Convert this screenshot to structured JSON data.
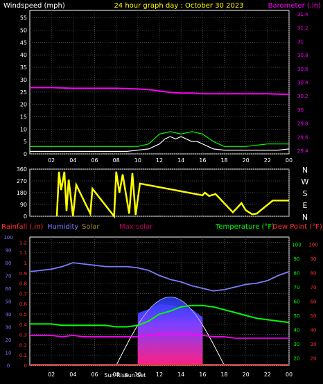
{
  "title": "24 hour graph day : October 30 2023",
  "colors": {
    "background": "#000000",
    "grid": "#5a5a5a",
    "axis_text": "#ffffff",
    "title": "#ffff00",
    "wind": "#ffffff",
    "gust": "#00ff00",
    "barometer": "#ff00ff",
    "wind_dir": "#ffff00",
    "rain": "#ff3030",
    "humidity": "#7b7bff",
    "solar": "#a08a30",
    "max_solar": "#c00060",
    "temperature": "#00ff00",
    "dew_point": "#ff3030",
    "dewpoint_line": "#ff00ff"
  },
  "chart_data": [
    {
      "type": "line",
      "name": "wind-baro",
      "left_label": "Windspeed (mph)",
      "right_label": "Barometer (.in)",
      "x_ticks": [
        "02",
        "04",
        "06",
        "08",
        "10",
        "12",
        "14",
        "16",
        "18",
        "20",
        "22",
        "00"
      ],
      "left_ticks": [
        "0",
        "5",
        "10",
        "15",
        "20",
        "25",
        "30",
        "35",
        "40",
        "45",
        "50",
        "55"
      ],
      "right_ticks": [
        "29.4",
        "29.6",
        "29.8",
        "30",
        "30.2",
        "30.4",
        "30.6",
        "30.8",
        "31",
        "31.2",
        "31.4"
      ],
      "ylim_left": [
        0,
        58
      ],
      "ylim_right": [
        29.35,
        31.45
      ],
      "series": [
        {
          "name": "Windspeed",
          "axis": "left",
          "x": [
            0,
            1,
            2,
            3,
            4,
            5,
            6,
            7,
            8,
            9,
            10,
            11,
            12,
            12.5,
            13,
            13.5,
            14,
            14.5,
            15,
            15.5,
            16,
            16.5,
            17,
            18,
            19,
            20,
            21,
            22,
            23,
            24
          ],
          "values": [
            1,
            1,
            1,
            1,
            1,
            1,
            1,
            1,
            1,
            1,
            1.5,
            2,
            4,
            6,
            7,
            6,
            7,
            6,
            5,
            5,
            4,
            3,
            2,
            1.5,
            1.5,
            1.5,
            1.5,
            1.5,
            1.5,
            2
          ]
        },
        {
          "name": "Gust",
          "axis": "left",
          "x": [
            0,
            2,
            4,
            6,
            8,
            10,
            11,
            12,
            13,
            14,
            15,
            16,
            17,
            18,
            20,
            22,
            24
          ],
          "values": [
            3,
            3,
            3,
            3,
            3,
            3,
            4,
            8,
            9,
            8,
            9,
            8,
            5,
            3,
            3,
            4,
            4
          ]
        },
        {
          "name": "Barometer",
          "axis": "right",
          "x": [
            0,
            2,
            4,
            6,
            8,
            10,
            11,
            12,
            13,
            14,
            15,
            16,
            18,
            20,
            22,
            24
          ],
          "values": [
            30.32,
            30.32,
            30.31,
            30.31,
            30.31,
            30.3,
            30.29,
            30.27,
            30.25,
            30.24,
            30.24,
            30.23,
            30.23,
            30.23,
            30.23,
            30.22
          ]
        }
      ]
    },
    {
      "type": "line",
      "name": "wind-direction",
      "left_ticks": [
        "0",
        "90",
        "180",
        "270",
        "360"
      ],
      "compass": [
        "N",
        "W",
        "S",
        "E",
        "N"
      ],
      "x_ticks": [
        "02",
        "04",
        "06",
        "08",
        "10",
        "12",
        "14",
        "16",
        "18",
        "20",
        "22",
        "00"
      ],
      "ylim": [
        0,
        360
      ],
      "series": [
        {
          "name": "Wind direction",
          "x": [
            2.5,
            2.7,
            2.9,
            3.2,
            3.4,
            3.6,
            4.0,
            4.3,
            5.6,
            5.8,
            7.8,
            8.0,
            8.3,
            8.6,
            9.2,
            9.5,
            9.8,
            10.2,
            16.0,
            16.2,
            16.6,
            17.2,
            18.8,
            19.6,
            20.0,
            20.6,
            21.0,
            22.5,
            24.0
          ],
          "values": [
            0,
            340,
            200,
            340,
            40,
            280,
            0,
            240,
            20,
            210,
            0,
            340,
            180,
            320,
            20,
            330,
            10,
            250,
            160,
            180,
            155,
            170,
            30,
            100,
            45,
            15,
            20,
            120,
            120
          ]
        }
      ]
    },
    {
      "type": "line",
      "name": "temp-humidity",
      "labels": {
        "rainfall": "Rainfall (.in)",
        "humidity": "Humidity",
        "solar": "Solar",
        "max_solar": "Max solar",
        "temperature": "Temperature (°F)",
        "dew_point": "Dew Point (°F)",
        "sunrise": "Sun Rise",
        "sunset": "Sun Set"
      },
      "x_ticks": [
        "02",
        "04",
        "06",
        "08",
        "10",
        "12",
        "14",
        "16",
        "18",
        "20",
        "22",
        "00"
      ],
      "humidity_ticks": [
        "0",
        "10",
        "20",
        "30",
        "40",
        "50",
        "60",
        "70",
        "80",
        "90",
        "100"
      ],
      "rain_ticks": [
        "0",
        "0.1",
        "0.2",
        "0.3",
        "0.4",
        "0.5",
        "0.6",
        "0.7",
        "0.8",
        "0.9",
        "1",
        "1.1",
        "1.2"
      ],
      "temp_ticks": [
        "20",
        "30",
        "40",
        "50",
        "60",
        "70",
        "80",
        "90",
        "100"
      ],
      "dew_ticks": [
        "20",
        "30",
        "40",
        "50",
        "60",
        "70",
        "80",
        "90",
        "100"
      ],
      "sunrise_hour": 8.0,
      "sunset_hour": 18.0,
      "series": [
        {
          "name": "Humidity",
          "axis": "humidity",
          "x": [
            0,
            1,
            2,
            3,
            4,
            5,
            6,
            7,
            8,
            9,
            10,
            11,
            12,
            13,
            14,
            15,
            16,
            17,
            18,
            19,
            20,
            21,
            22,
            23,
            24
          ],
          "values": [
            73,
            74,
            75,
            77,
            80,
            79,
            78,
            77,
            77,
            77,
            76,
            74,
            70,
            67,
            65,
            62,
            60,
            58,
            59,
            61,
            63,
            64,
            66,
            70,
            73
          ]
        },
        {
          "name": "Temperature",
          "axis": "temp",
          "x": [
            0,
            1,
            2,
            3,
            4,
            5,
            6,
            7,
            8,
            9,
            10,
            11,
            12,
            13,
            14,
            15,
            16,
            17,
            18,
            19,
            20,
            21,
            22,
            23,
            24
          ],
          "values": [
            44,
            44,
            44,
            43,
            43,
            43,
            43,
            43,
            42,
            42,
            43,
            46,
            51,
            53,
            56,
            57,
            57,
            56,
            54,
            52,
            50,
            48,
            47,
            46,
            45
          ]
        },
        {
          "name": "Dew point",
          "axis": "temp",
          "x": [
            0,
            1,
            2,
            3,
            4,
            5,
            6,
            7,
            8,
            9,
            10,
            11,
            12,
            13,
            14,
            15,
            16,
            17,
            18,
            19,
            20,
            21,
            22,
            23,
            24
          ],
          "values": [
            36,
            36,
            36,
            35,
            36,
            35,
            35,
            35,
            35,
            35,
            35,
            36,
            37,
            37,
            37,
            37,
            36,
            35,
            35,
            34,
            34,
            34,
            34,
            34,
            34
          ]
        },
        {
          "name": "Max solar",
          "axis": "solar",
          "x": [
            8.0,
            9,
            10,
            11,
            12,
            13,
            14,
            15,
            16,
            17,
            18.0
          ],
          "values": [
            0,
            90,
            320,
            520,
            640,
            680,
            640,
            520,
            320,
            90,
            0
          ]
        },
        {
          "name": "Solar",
          "axis": "solar",
          "x": [
            10,
            11,
            12,
            13,
            14,
            15,
            16
          ],
          "values": [
            520,
            560,
            610,
            600,
            580,
            560,
            480
          ]
        }
      ]
    }
  ]
}
